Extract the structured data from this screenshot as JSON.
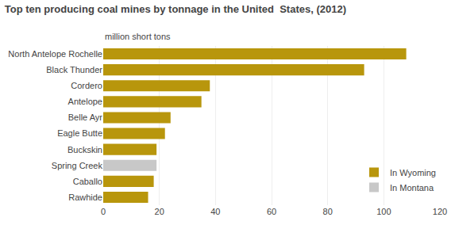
{
  "chart_data": {
    "type": "bar",
    "orientation": "horizontal",
    "title": "Top ten producing coal mines by tonnage in the United  States, (2012)",
    "subtitle": "million short tons",
    "categories": [
      "North Antelope Rochelle",
      "Black Thunder",
      "Cordero",
      "Antelope",
      "Belle Ayr",
      "Eagle Butte",
      "Buckskin",
      "Spring Creek",
      "Caballo",
      "Rawhide"
    ],
    "series": [
      {
        "name": "In Wyoming",
        "color": "#b8960c",
        "values": [
          108,
          93,
          38,
          35,
          24,
          22,
          19,
          null,
          18,
          16
        ]
      },
      {
        "name": "In Montana",
        "color": "#c8c8c8",
        "values": [
          null,
          null,
          null,
          null,
          null,
          null,
          null,
          19,
          null,
          null
        ]
      }
    ],
    "xlim": [
      0,
      120
    ],
    "xticks": [
      0,
      20,
      40,
      60,
      80,
      100,
      120
    ],
    "grid": true,
    "legend": "lower right"
  }
}
